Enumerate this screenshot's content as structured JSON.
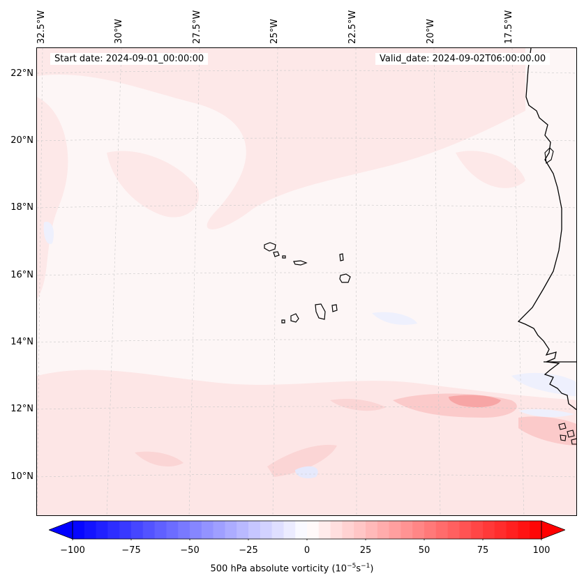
{
  "start_date": "Start date: 2024-09-01_00:00:00",
  "valid_date": "Valid_date: 2024-09-02T06:00:00.00",
  "lon_labels": [
    "32.5°W",
    "30°W",
    "27.5°W",
    "25°W",
    "22.5°W",
    "20°W",
    "17.5°W"
  ],
  "lat_labels": [
    "22°N",
    "20°N",
    "18°N",
    "16°N",
    "14°N",
    "12°N",
    "10°N"
  ],
  "colorbar": {
    "label": "500 hPa absolute vorticity (10",
    "label_exp1": "−5",
    "label_mid": "s",
    "label_exp2": "−1",
    "label_end": ")",
    "ticks": [
      "−100",
      "−75",
      "−50",
      "−25",
      "0",
      "25",
      "50",
      "75",
      "100"
    ],
    "min": -100,
    "max": 100,
    "levels": 40,
    "extend": "both",
    "colormap": "bwr"
  },
  "map": {
    "projection": "lambert-conformal",
    "lon_range": [
      -33,
      -16
    ],
    "lat_range": [
      9,
      22.8
    ],
    "features": [
      "coastline",
      "Cape Verde islands",
      "West Africa coast",
      "gridlines"
    ]
  },
  "colors": {
    "background": "#fdf6f6",
    "weak_positive": "#fde6e6",
    "moderate_positive": "#fbc4c4",
    "strong_positive": "#f79a9a",
    "weak_negative": "#eef0fd",
    "moderate_negative": "#dcdffc"
  }
}
